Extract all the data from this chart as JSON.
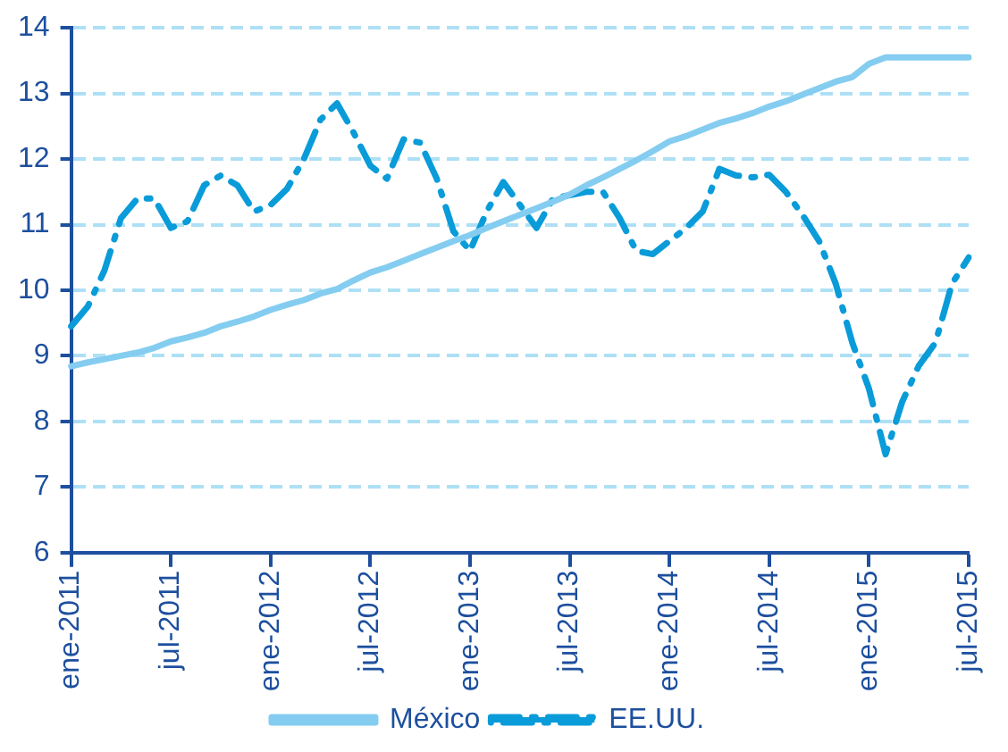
{
  "chart_data": {
    "type": "line",
    "categories": [
      "ene-2011",
      null,
      null,
      null,
      null,
      null,
      "jul-2011",
      null,
      null,
      null,
      null,
      null,
      "ene-2012",
      null,
      null,
      null,
      null,
      null,
      "jul-2012",
      null,
      null,
      null,
      null,
      null,
      "ene-2013",
      null,
      null,
      null,
      null,
      null,
      "jul-2013",
      null,
      null,
      null,
      null,
      null,
      "ene-2014",
      null,
      null,
      null,
      null,
      null,
      "jul-2014",
      null,
      null,
      null,
      null,
      null,
      "ene-2015",
      null,
      null,
      null,
      null,
      null,
      "jul-2015"
    ],
    "series": [
      {
        "name": "México",
        "color": "#84cdf0",
        "line_style": "solid",
        "values": [
          8.84,
          8.9,
          8.95,
          9.0,
          9.05,
          9.12,
          9.22,
          9.28,
          9.35,
          9.45,
          9.52,
          9.6,
          9.7,
          9.78,
          9.85,
          9.95,
          10.02,
          10.15,
          10.27,
          10.35,
          10.45,
          10.55,
          10.65,
          10.75,
          10.84,
          10.95,
          11.05,
          11.15,
          11.25,
          11.35,
          11.46,
          11.6,
          11.72,
          11.85,
          11.98,
          12.12,
          12.27,
          12.35,
          12.45,
          12.55,
          12.62,
          12.7,
          12.8,
          12.88,
          12.98,
          13.08,
          13.18,
          13.25,
          13.45,
          13.55,
          13.55,
          13.55,
          13.55,
          13.55,
          13.55
        ]
      },
      {
        "name": "EE.UU.",
        "color": "#0a9bd9",
        "line_style": "dashed",
        "values": [
          9.45,
          9.75,
          10.3,
          11.1,
          11.4,
          11.4,
          10.95,
          11.05,
          11.6,
          11.75,
          11.6,
          11.2,
          11.3,
          11.55,
          12.0,
          12.6,
          12.85,
          12.4,
          11.9,
          11.7,
          12.3,
          12.25,
          11.7,
          10.9,
          10.6,
          11.2,
          11.65,
          11.3,
          10.95,
          11.4,
          11.45,
          11.5,
          11.5,
          11.1,
          10.6,
          10.55,
          10.75,
          10.95,
          11.2,
          11.85,
          11.75,
          11.72,
          11.76,
          11.5,
          11.15,
          10.75,
          10.1,
          9.2,
          8.5,
          7.5,
          8.3,
          8.85,
          9.2,
          10.1,
          10.5
        ]
      }
    ],
    "ylim": [
      6,
      14
    ],
    "yticks": [
      6,
      7,
      8,
      9,
      10,
      11,
      12,
      13,
      14
    ],
    "grid": "y",
    "legend": "bottom",
    "marker": "none"
  }
}
